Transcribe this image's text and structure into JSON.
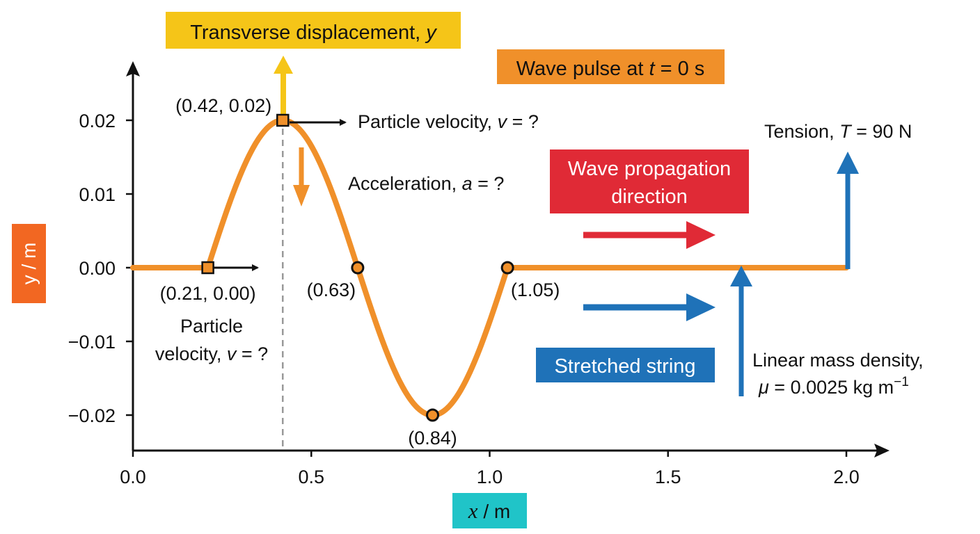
{
  "chart_data": {
    "type": "line",
    "xlabel": {
      "var": "x",
      "unit": " / m"
    },
    "ylabel": "y / m",
    "xlim": [
      0,
      2.1
    ],
    "ylim": [
      -0.025,
      0.029
    ],
    "x_ticks": [
      0.0,
      0.5,
      1.0,
      1.5,
      2.0
    ],
    "x_tick_labels": [
      "0.0",
      "0.5",
      "1.0",
      "1.5",
      "2.0"
    ],
    "y_ticks": [
      0.02,
      0.01,
      0.0,
      -0.01,
      -0.02
    ],
    "y_tick_labels": [
      "0.02",
      "0.01",
      "0.00",
      "−0.01",
      "−0.02"
    ],
    "grid": false,
    "series": [
      {
        "color": "#F0902A",
        "profile": {
          "flat_before": [
            0,
            0.21
          ],
          "sine": {
            "start": 0.21,
            "end": 1.05,
            "wavelength": 0.84,
            "amplitude": 0.02
          },
          "flat_after": [
            1.05,
            2.0
          ]
        }
      }
    ],
    "points": [
      {
        "x": 0.21,
        "y": 0.0,
        "marker": "square",
        "label": "(0.21, 0.00)"
      },
      {
        "x": 0.42,
        "y": 0.02,
        "marker": "square",
        "label": "(0.42, 0.02)"
      },
      {
        "x": 0.63,
        "y": 0.0,
        "marker": "circle",
        "label": "(0.63)"
      },
      {
        "x": 0.84,
        "y": -0.02,
        "marker": "circle",
        "label": "(0.84)"
      },
      {
        "x": 1.05,
        "y": 0.0,
        "marker": "circle",
        "label": "(1.05)"
      }
    ],
    "reference_line_x": 0.42
  },
  "annotations": {
    "transverse": {
      "text": "Transverse displacement, ",
      "var": "y",
      "bg": "#F5C518"
    },
    "wave_pulse": {
      "pre": "Wave pulse at ",
      "var": "t",
      "post": " = 0 s",
      "bg": "#F0902A"
    },
    "particle_velocity_peak": {
      "pre": "Particle velocity, ",
      "var": "v",
      "post": " = ?"
    },
    "acceleration": {
      "pre": "Acceleration, ",
      "var": "a",
      "post": " = ?"
    },
    "particle_velocity_start": {
      "line1": "Particle",
      "pre": "velocity, ",
      "var": "v",
      "post": " = ?"
    },
    "tension": {
      "pre": "Tension, ",
      "var": "T",
      "post": " = 90 N"
    },
    "propagation": {
      "line1": "Wave propagation",
      "line2": "direction",
      "bg": "#E02A36"
    },
    "string": {
      "text": "Stretched string",
      "bg": "#1F72B8"
    },
    "density": {
      "line1": "Linear mass density,",
      "var": "μ",
      "post": " = 0.0025 kg m",
      "sup": "−1"
    }
  },
  "colors": {
    "curve": "#F0902A",
    "ylabel_bg": "#F26722",
    "xlabel_bg": "#20C4C8",
    "yellow_arrow": "#F5C518",
    "orange_arrow": "#F0902A",
    "red_arrow": "#E02A36",
    "blue_arrow": "#1F72B8",
    "axis": "#111111",
    "dashed": "#999999"
  }
}
